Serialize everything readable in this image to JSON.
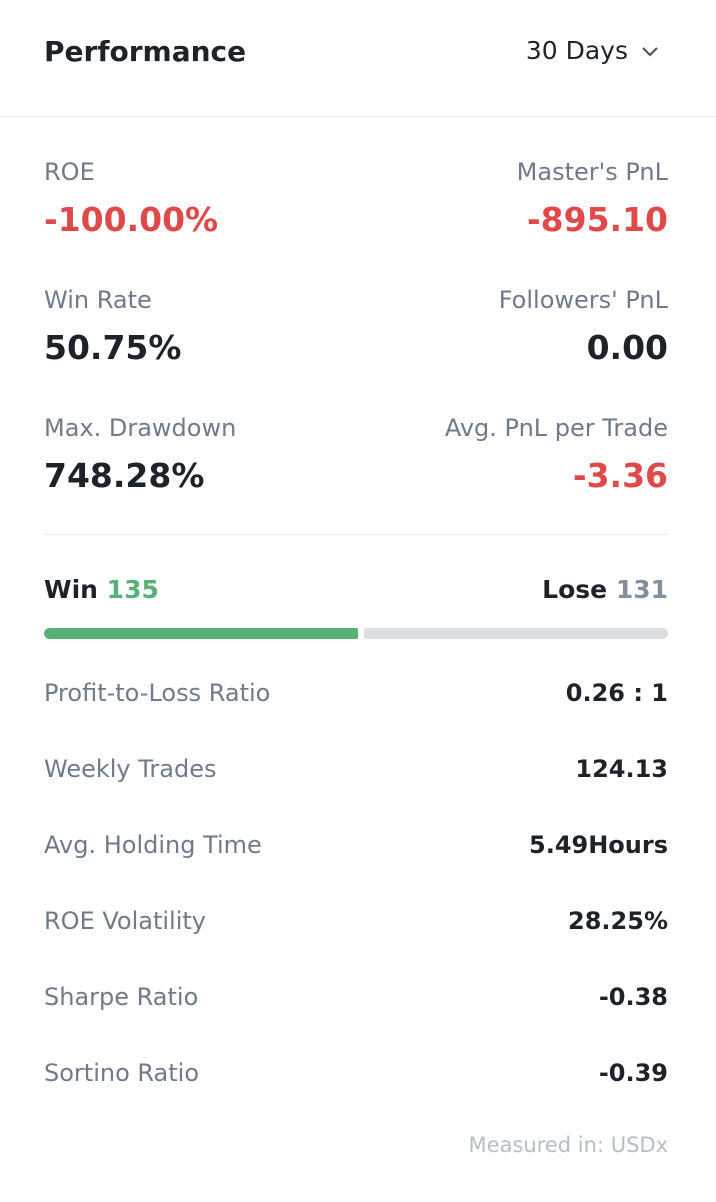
{
  "header": {
    "title": "Performance",
    "period": "30 Days"
  },
  "metrics": [
    {
      "label": "ROE",
      "value": "-100.00%"
    },
    {
      "label": "Master's PnL",
      "value": "-895.10"
    },
    {
      "label": "Win Rate",
      "value": "50.75%"
    },
    {
      "label": "Followers' PnL",
      "value": "0.00"
    },
    {
      "label": "Max. Drawdown",
      "value": "748.28%"
    },
    {
      "label": "Avg. PnL per Trade",
      "value": "-3.36"
    }
  ],
  "win_lose": {
    "win_label": "Win",
    "win": 135,
    "lose_label": "Lose",
    "lose": 131
  },
  "stats": [
    {
      "label": "Profit-to-Loss Ratio",
      "value": "0.26 : 1"
    },
    {
      "label": "Weekly Trades",
      "value": "124.13"
    },
    {
      "label": "Avg. Holding Time",
      "value": "5.49Hours"
    },
    {
      "label": "ROE Volatility",
      "value": "28.25%"
    },
    {
      "label": "Sharpe Ratio",
      "value": "-0.38"
    },
    {
      "label": "Sortino Ratio",
      "value": "-0.39"
    }
  ],
  "footer": "Measured in: USDx"
}
